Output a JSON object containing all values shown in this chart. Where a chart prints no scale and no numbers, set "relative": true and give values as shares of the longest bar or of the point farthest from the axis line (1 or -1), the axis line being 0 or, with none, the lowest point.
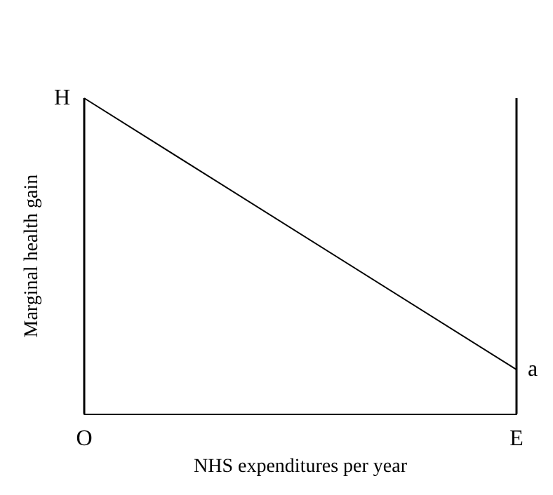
{
  "chart_data": {
    "type": "line",
    "relative": true,
    "xlabel": "NHS expenditures per year",
    "ylabel": "Marginal health gain",
    "categories": [
      "O",
      "E"
    ],
    "series": [
      {
        "color": "#000000",
        "values": [
          1,
          0.14
        ]
      }
    ],
    "annotations": [
      {
        "text": "H",
        "x": "O",
        "y": 1
      },
      {
        "text": "a",
        "x": "E",
        "y": 0.14
      }
    ],
    "ref_lines": [
      {
        "axis": "x",
        "value": "O",
        "color": "#000000"
      },
      {
        "axis": "x",
        "value": "E",
        "color": "#000000"
      }
    ],
    "grid": false,
    "marker": "none",
    "line_style": "solid"
  }
}
